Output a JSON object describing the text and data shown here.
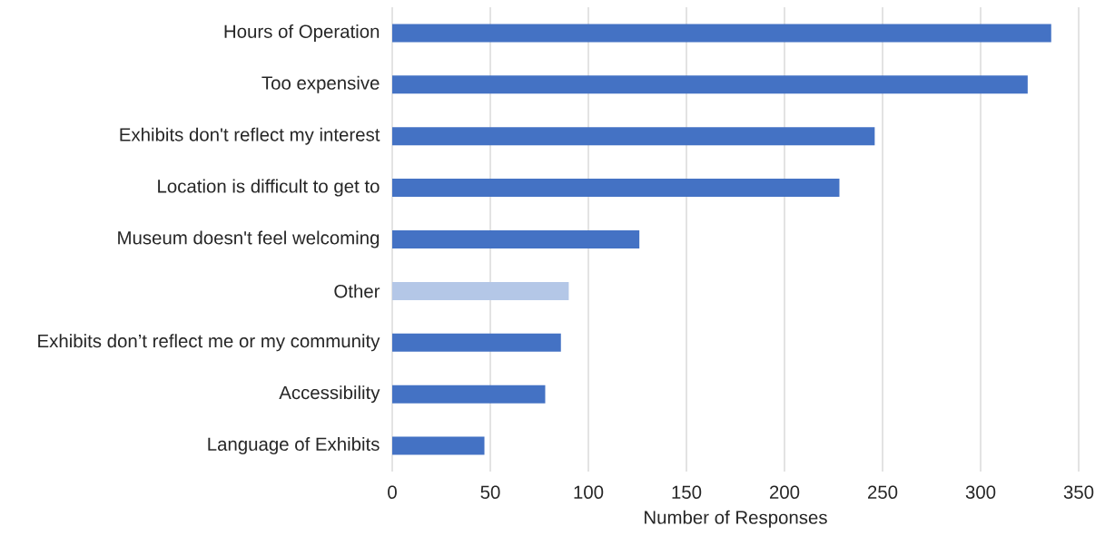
{
  "chart_data": {
    "type": "bar",
    "orientation": "horizontal",
    "xlabel": "Number of Responses",
    "categories": [
      "Hours of Operation",
      "Too expensive",
      "Exhibits don't reflect my interest",
      "Location is difficult to get to",
      "Museum doesn't feel welcoming",
      "Other",
      "Exhibits don’t reflect me or my community",
      "Accessibility",
      "Language of Exhibits"
    ],
    "values": [
      336,
      324,
      246,
      228,
      126,
      90,
      86,
      78,
      47
    ],
    "colors": [
      "#4472c4",
      "#4472c4",
      "#4472c4",
      "#4472c4",
      "#4472c4",
      "#b4c7e7",
      "#4472c4",
      "#4472c4",
      "#4472c4"
    ],
    "xlim": [
      0,
      350
    ],
    "xticks": [
      0,
      50,
      100,
      150,
      200,
      250,
      300,
      350
    ],
    "grid": "x"
  }
}
